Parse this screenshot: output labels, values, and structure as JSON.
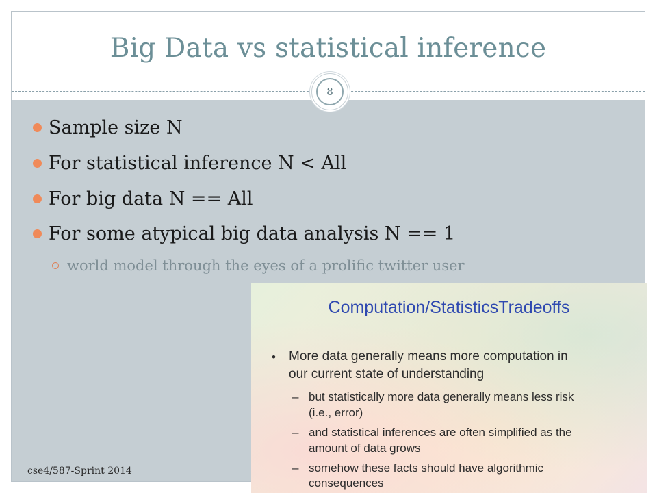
{
  "slide": {
    "title": "Big Data vs statistical inference",
    "slide_number": "8",
    "bullets": [
      "Sample size N",
      "For statistical inference N < All",
      "For big data N == All",
      "For some atypical big data analysis N == 1"
    ],
    "sub_bullet": "world model through the eyes of a prolific twitter user",
    "footer": "cse4/587-Sprint 2014"
  },
  "inset": {
    "title": "Computation/StatisticsTradeoffs",
    "bullet_marker": "•",
    "main_point_line1": "More data generally means more computation in",
    "main_point_line2": "our current state of understanding",
    "dash": "–",
    "sub_points": [
      {
        "line1": "but statistically more data generally means less risk",
        "line2": "(i.e., error)"
      },
      {
        "line1": "and statistical inferences are often simplified as the",
        "line2": "amount of data grows"
      },
      {
        "line1": "somehow these facts should have algorithmic",
        "line2": "consequences"
      }
    ]
  },
  "colors": {
    "title": "#6c8f97",
    "content_bg": "#c5ced3",
    "bullet_dot": "#f08a59",
    "sub_bullet_text": "#7f8f96",
    "inset_title": "#2f49b0"
  }
}
